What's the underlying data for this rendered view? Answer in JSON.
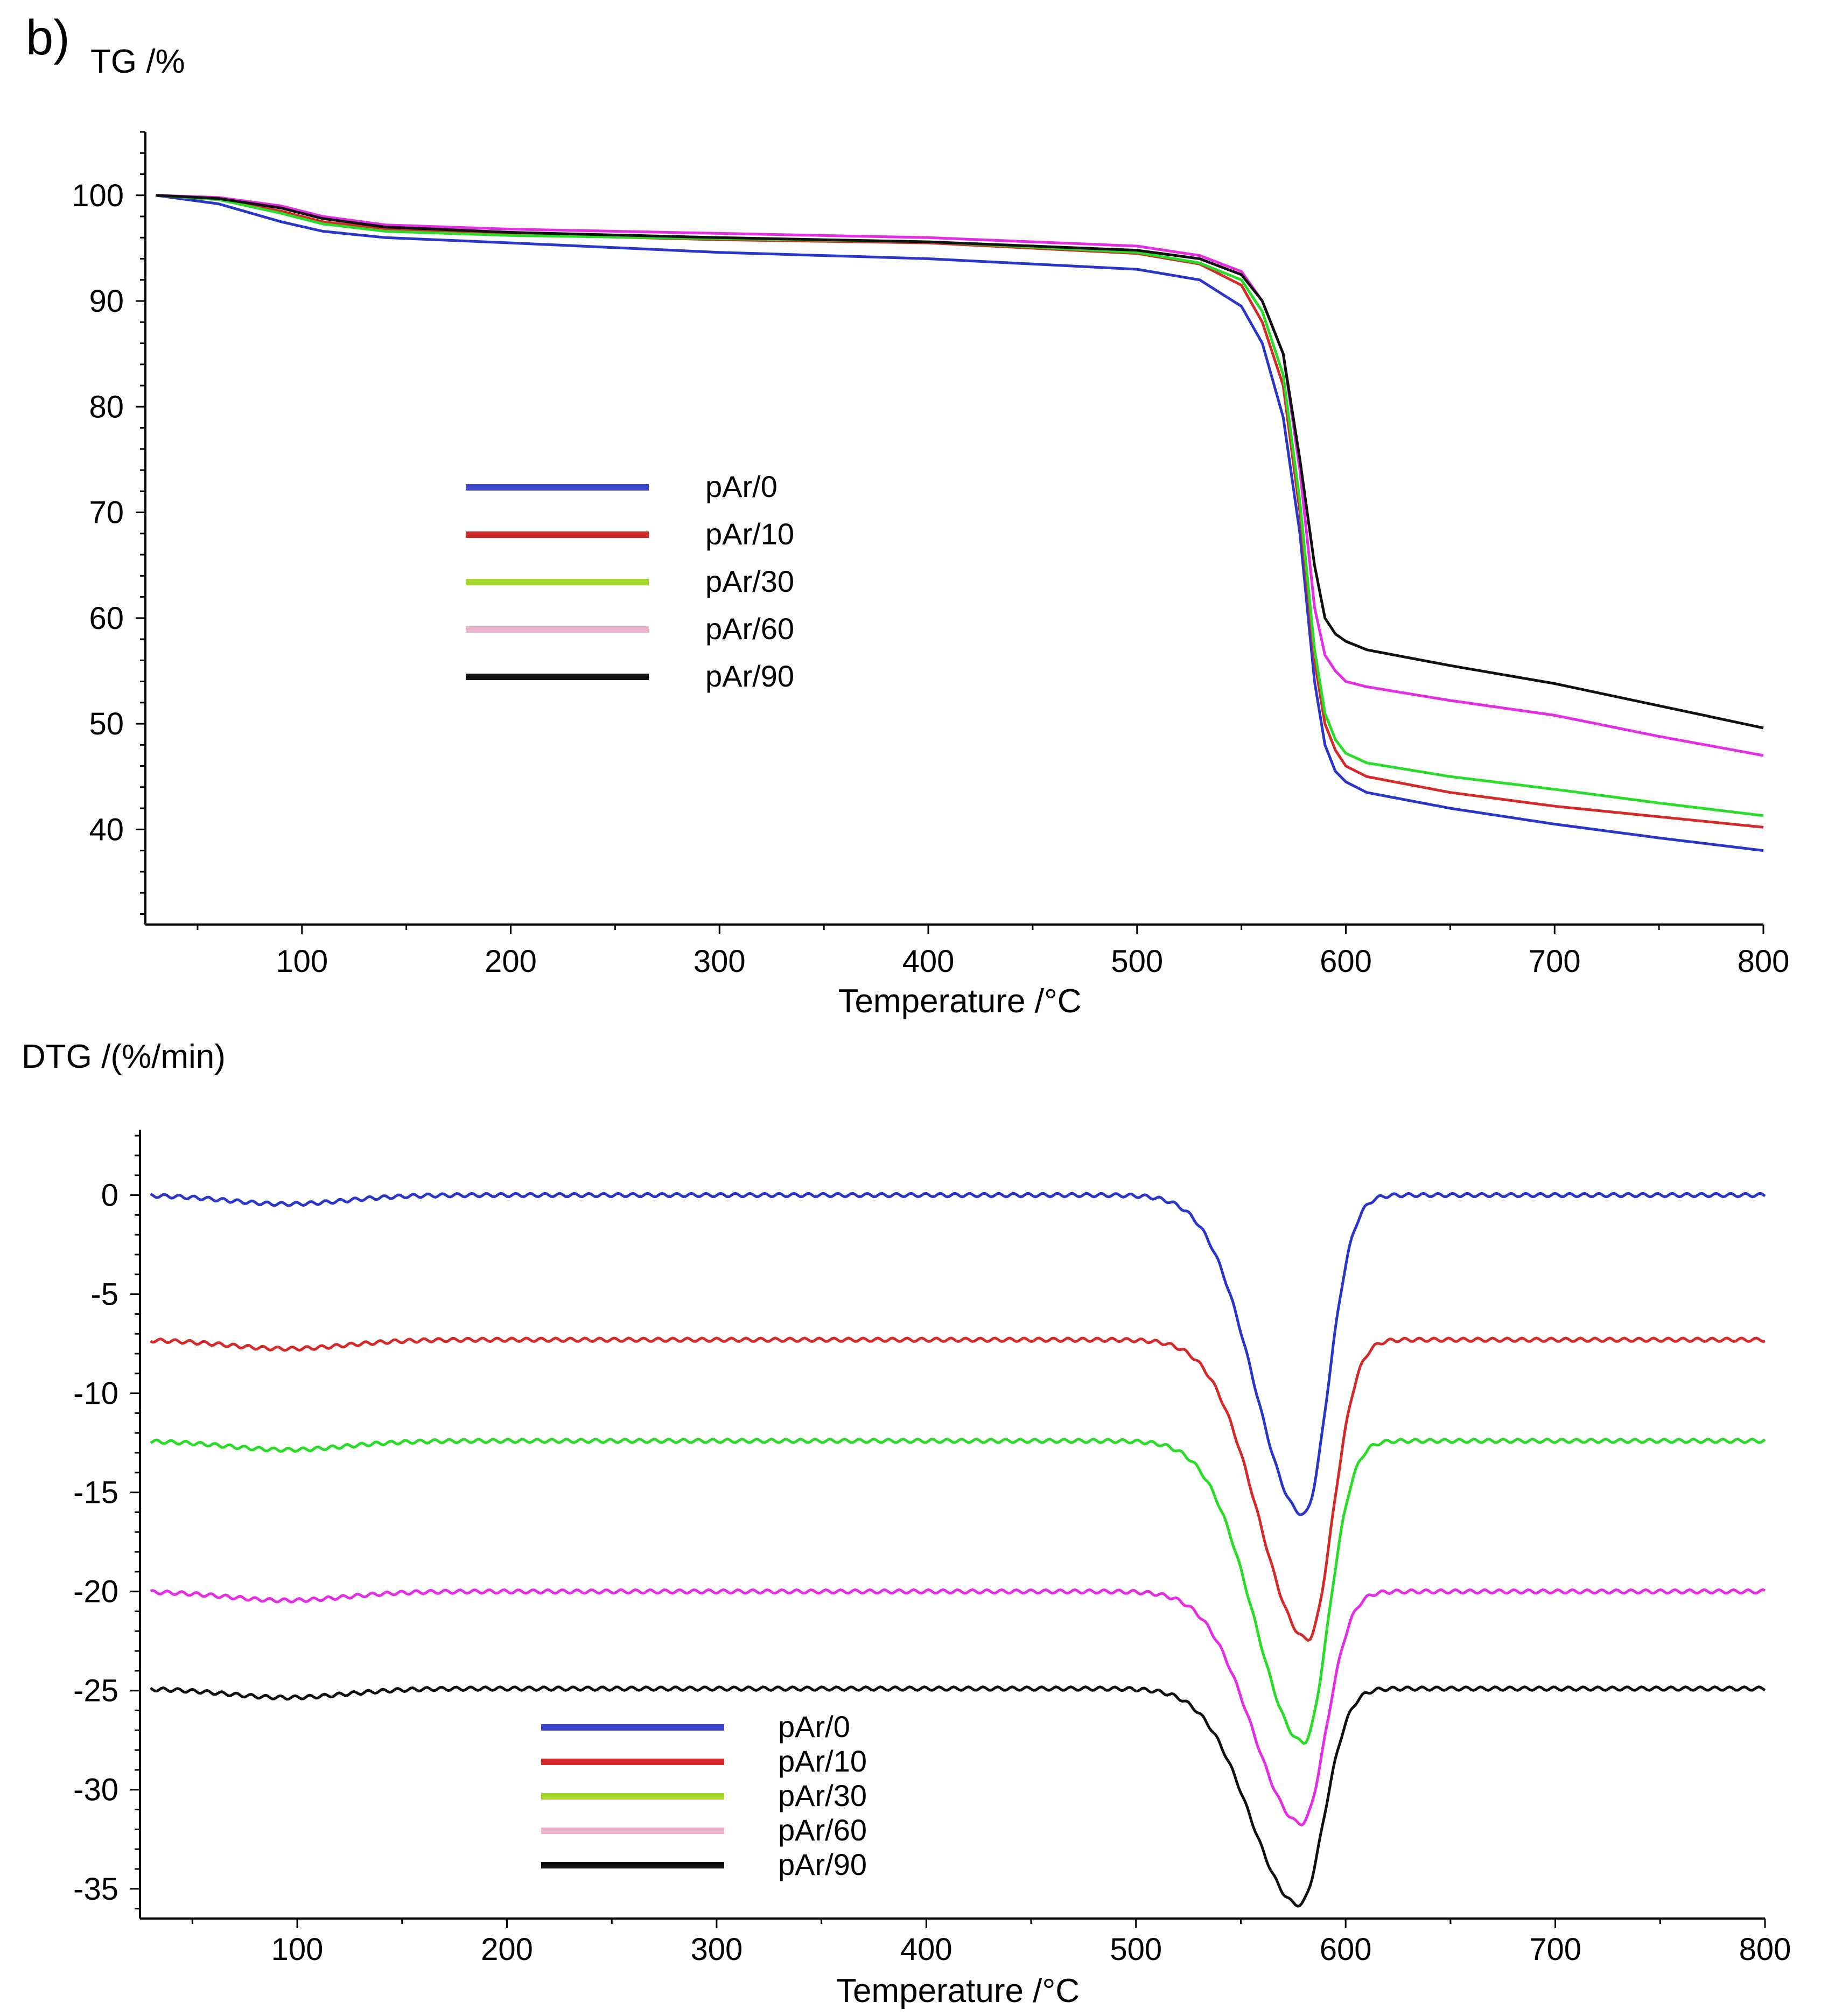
{
  "panel_label": "b)",
  "chart_data": [
    {
      "type": "line",
      "name": "TG",
      "ylabel": "TG /%",
      "xlabel": "Temperature /°C",
      "xlim": [
        25,
        800
      ],
      "ylim": [
        31,
        106
      ],
      "xticks": [
        100,
        200,
        300,
        400,
        500,
        600,
        700,
        800
      ],
      "yticks": [
        40,
        50,
        60,
        70,
        80,
        90,
        100
      ],
      "legend": [
        "pAr/0",
        "pAr/10",
        "pAr/30",
        "pAr/60",
        "pAr/90"
      ],
      "legend_placement": "center-left",
      "series": [
        {
          "name": "pAr/0",
          "color": "#2b35c8",
          "x": [
            30,
            60,
            90,
            110,
            140,
            200,
            300,
            400,
            500,
            530,
            550,
            560,
            570,
            578,
            585,
            590,
            595,
            600,
            610,
            650,
            700,
            750,
            800
          ],
          "y": [
            100,
            99.2,
            97.5,
            96.6,
            96,
            95.5,
            94.6,
            94,
            93,
            92,
            89.5,
            86,
            79,
            68,
            54,
            48,
            45.5,
            44.5,
            43.5,
            42,
            40.5,
            39.2,
            38
          ]
        },
        {
          "name": "pAr/10",
          "color": "#d42a2a",
          "x": [
            30,
            60,
            90,
            110,
            140,
            200,
            300,
            400,
            500,
            530,
            550,
            560,
            570,
            578,
            585,
            590,
            595,
            600,
            610,
            650,
            700,
            750,
            800
          ],
          "y": [
            100,
            99.6,
            98.5,
            97.5,
            96.8,
            96.3,
            95.8,
            95.5,
            94.5,
            93.5,
            91.5,
            88,
            82,
            70,
            56,
            50,
            47.5,
            46,
            45,
            43.5,
            42.2,
            41.2,
            40.2
          ]
        },
        {
          "name": "pAr/30",
          "color": "#28dc28",
          "x": [
            30,
            60,
            90,
            110,
            140,
            200,
            300,
            400,
            500,
            530,
            550,
            560,
            570,
            578,
            585,
            590,
            595,
            600,
            610,
            650,
            700,
            750,
            800
          ],
          "y": [
            100,
            99.6,
            98.3,
            97.3,
            96.6,
            96.2,
            95.9,
            95.6,
            94.6,
            93.6,
            92,
            89,
            83,
            71,
            57,
            51,
            48.5,
            47.2,
            46.3,
            45,
            43.8,
            42.5,
            41.3
          ]
        },
        {
          "name": "pAr/60",
          "color": "#e32ee3",
          "x": [
            30,
            60,
            90,
            110,
            140,
            200,
            300,
            400,
            500,
            530,
            550,
            560,
            570,
            578,
            585,
            590,
            595,
            600,
            610,
            650,
            700,
            750,
            800
          ],
          "y": [
            100,
            99.8,
            99,
            98,
            97.2,
            96.8,
            96.4,
            96,
            95.2,
            94.3,
            92.8,
            90,
            85,
            74,
            61,
            56.5,
            55,
            54,
            53.5,
            52.2,
            50.8,
            48.8,
            47
          ]
        },
        {
          "name": "pAr/90",
          "color": "#111111",
          "x": [
            30,
            60,
            90,
            110,
            140,
            200,
            300,
            400,
            500,
            530,
            550,
            560,
            570,
            578,
            585,
            590,
            595,
            600,
            610,
            650,
            700,
            750,
            800
          ],
          "y": [
            100,
            99.7,
            98.8,
            97.8,
            97,
            96.5,
            96,
            95.6,
            94.8,
            94,
            92.5,
            90,
            85,
            75,
            65,
            60,
            58.5,
            57.8,
            57,
            55.5,
            53.8,
            51.7,
            49.6
          ]
        }
      ]
    },
    {
      "type": "line",
      "name": "DTG",
      "ylabel": "DTG /(%/min)",
      "xlabel": "Temperature /°C",
      "xlim": [
        25,
        800
      ],
      "ylim": [
        -36.5,
        3.3
      ],
      "xticks": [
        100,
        200,
        300,
        400,
        500,
        600,
        700,
        800
      ],
      "yticks": [
        0,
        -5,
        -10,
        -15,
        -20,
        -25,
        -30,
        -35
      ],
      "legend": [
        "pAr/0",
        "pAr/10",
        "pAr/30",
        "pAr/60",
        "pAr/90"
      ],
      "legend_placement": "bottom-left",
      "series": [
        {
          "name": "pAr/0",
          "color": "#2b35c8",
          "baseline": 0,
          "peak": -16.1,
          "peak_x": 580
        },
        {
          "name": "pAr/10",
          "color": "#d42a2a",
          "baseline": -7.3,
          "peak": -22.4,
          "peak_x": 582
        },
        {
          "name": "pAr/30",
          "color": "#28dc28",
          "baseline": -12.4,
          "peak": -27.6,
          "peak_x": 580
        },
        {
          "name": "pAr/60",
          "color": "#e32ee3",
          "baseline": -20,
          "peak": -31.7,
          "peak_x": 579
        },
        {
          "name": "pAr/90",
          "color": "#111111",
          "baseline": -24.9,
          "peak": -35.8,
          "peak_x": 578
        }
      ]
    }
  ],
  "legend_colors": [
    "#3a45c9",
    "#d42a2a",
    "#a6d92c",
    "#ecb3cd",
    "#111111"
  ]
}
